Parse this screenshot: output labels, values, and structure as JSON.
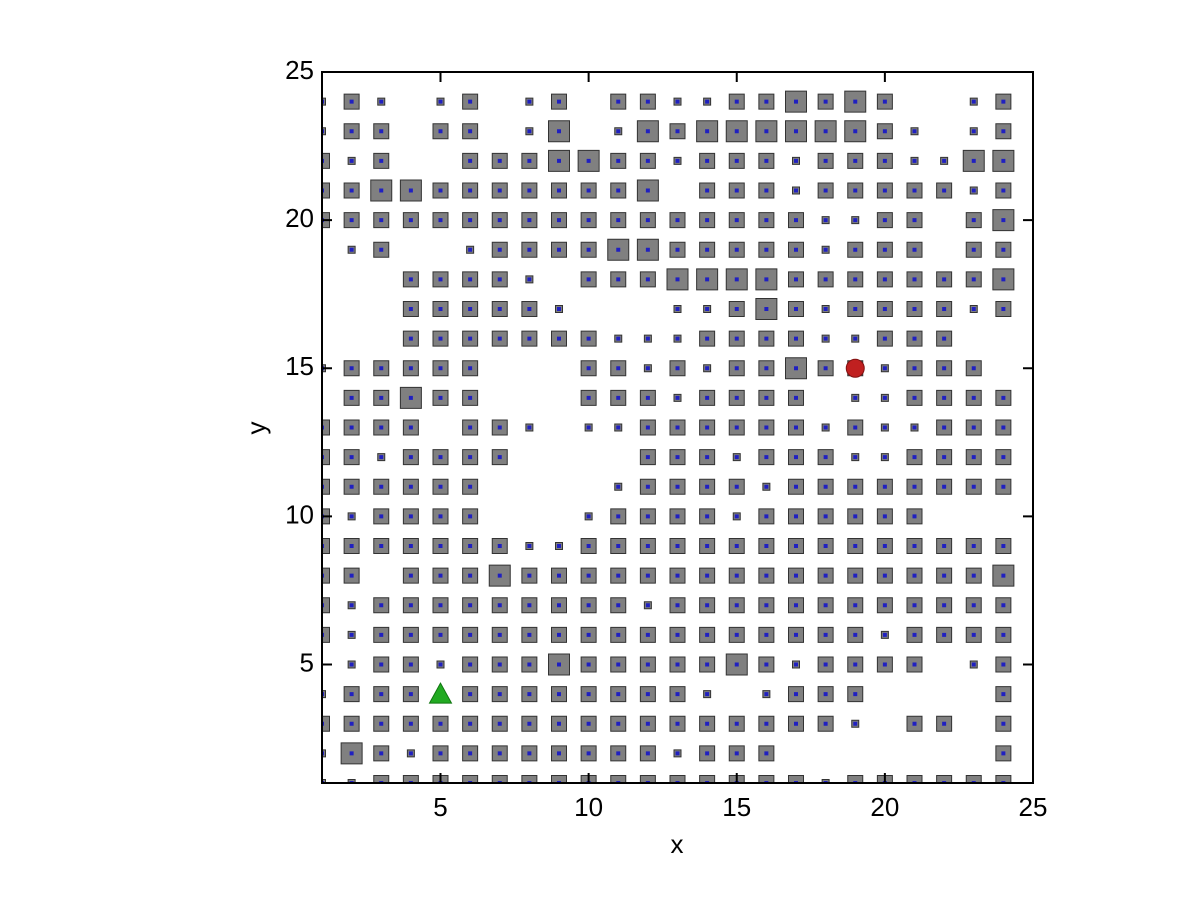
{
  "chart_data": {
    "type": "grid-scatter",
    "xlabel": "x",
    "ylabel": "y",
    "xlim": [
      1,
      25
    ],
    "ylim": [
      1,
      25
    ],
    "xticks": [
      5,
      10,
      15,
      20,
      25
    ],
    "yticks": [
      5,
      10,
      15,
      20,
      25
    ],
    "x": [
      1,
      2,
      3,
      4,
      5,
      6,
      7,
      8,
      9,
      10,
      11,
      12,
      13,
      14,
      15,
      16,
      17,
      18,
      19,
      20,
      21,
      22,
      23,
      24
    ],
    "y": [
      1,
      2,
      3,
      4,
      5,
      6,
      7,
      8,
      9,
      10,
      11,
      12,
      13,
      14,
      15,
      16,
      17,
      18,
      19,
      20,
      21,
      22,
      23,
      24
    ],
    "color": "#808080",
    "edge_color": "#2020c0",
    "sizes": [
      [
        1,
        1,
        2,
        2,
        2,
        2,
        2,
        2,
        2,
        2,
        2,
        2,
        2,
        2,
        2,
        2,
        2,
        1,
        2,
        2,
        2,
        2,
        2,
        2
      ],
      [
        1,
        3,
        2,
        1,
        2,
        2,
        2,
        2,
        2,
        2,
        2,
        2,
        1,
        2,
        2,
        2,
        null,
        null,
        null,
        null,
        null,
        null,
        null,
        2
      ],
      [
        2,
        2,
        2,
        2,
        2,
        2,
        2,
        2,
        2,
        2,
        2,
        2,
        2,
        2,
        2,
        2,
        2,
        2,
        1,
        null,
        2,
        2,
        null,
        2
      ],
      [
        1,
        2,
        2,
        2,
        1,
        2,
        2,
        2,
        2,
        2,
        2,
        2,
        2,
        1,
        null,
        1,
        2,
        2,
        2,
        null,
        null,
        null,
        null,
        2
      ],
      [
        null,
        1,
        2,
        2,
        1,
        2,
        2,
        2,
        3,
        2,
        2,
        2,
        2,
        2,
        3,
        2,
        1,
        2,
        2,
        2,
        2,
        null,
        1,
        2
      ],
      [
        2,
        1,
        2,
        2,
        2,
        2,
        2,
        2,
        2,
        2,
        2,
        2,
        2,
        2,
        2,
        2,
        2,
        2,
        2,
        1,
        2,
        2,
        2,
        2
      ],
      [
        2,
        1,
        2,
        2,
        2,
        2,
        2,
        2,
        2,
        2,
        2,
        1,
        2,
        2,
        2,
        2,
        2,
        2,
        2,
        2,
        2,
        2,
        2,
        2
      ],
      [
        2,
        2,
        null,
        2,
        2,
        2,
        3,
        2,
        2,
        2,
        2,
        2,
        2,
        2,
        2,
        2,
        2,
        2,
        2,
        2,
        2,
        2,
        2,
        3
      ],
      [
        2,
        2,
        2,
        2,
        2,
        2,
        2,
        1,
        1,
        2,
        2,
        2,
        2,
        2,
        2,
        2,
        2,
        2,
        2,
        2,
        2,
        2,
        2,
        2
      ],
      [
        2,
        1,
        2,
        2,
        2,
        2,
        null,
        null,
        null,
        1,
        2,
        2,
        2,
        2,
        1,
        2,
        2,
        2,
        2,
        2,
        2,
        null,
        null,
        null
      ],
      [
        2,
        2,
        2,
        2,
        2,
        2,
        null,
        null,
        null,
        null,
        1,
        2,
        2,
        2,
        2,
        1,
        2,
        2,
        2,
        2,
        2,
        2,
        2,
        2
      ],
      [
        2,
        2,
        1,
        2,
        2,
        2,
        2,
        null,
        null,
        null,
        null,
        2,
        2,
        2,
        1,
        2,
        2,
        2,
        1,
        1,
        2,
        2,
        2,
        2
      ],
      [
        2,
        2,
        2,
        2,
        null,
        2,
        2,
        1,
        null,
        1,
        1,
        2,
        2,
        2,
        2,
        2,
        2,
        1,
        2,
        1,
        1,
        2,
        2,
        2
      ],
      [
        null,
        2,
        2,
        3,
        2,
        2,
        null,
        null,
        null,
        2,
        2,
        2,
        1,
        2,
        2,
        2,
        2,
        null,
        1,
        1,
        2,
        2,
        2,
        2
      ],
      [
        1,
        2,
        2,
        2,
        2,
        2,
        null,
        null,
        null,
        2,
        2,
        1,
        2,
        1,
        2,
        2,
        3,
        2,
        2,
        1,
        2,
        2,
        2,
        null
      ],
      [
        null,
        null,
        null,
        2,
        2,
        2,
        2,
        2,
        2,
        2,
        1,
        1,
        1,
        2,
        2,
        2,
        2,
        1,
        1,
        2,
        2,
        2,
        null,
        null
      ],
      [
        null,
        null,
        null,
        2,
        2,
        2,
        2,
        2,
        1,
        null,
        null,
        null,
        1,
        1,
        2,
        3,
        2,
        1,
        2,
        2,
        2,
        2,
        1,
        2
      ],
      [
        null,
        null,
        null,
        2,
        2,
        2,
        2,
        1,
        null,
        2,
        2,
        2,
        3,
        3,
        3,
        3,
        2,
        2,
        2,
        2,
        2,
        2,
        2,
        3
      ],
      [
        null,
        1,
        2,
        null,
        null,
        1,
        2,
        2,
        2,
        2,
        3,
        3,
        2,
        2,
        2,
        2,
        2,
        1,
        2,
        2,
        2,
        null,
        2,
        2
      ],
      [
        2,
        2,
        2,
        2,
        2,
        2,
        2,
        2,
        2,
        2,
        2,
        2,
        2,
        2,
        2,
        2,
        2,
        1,
        1,
        2,
        2,
        null,
        2,
        3
      ],
      [
        2,
        2,
        3,
        3,
        2,
        2,
        2,
        2,
        2,
        2,
        2,
        3,
        null,
        2,
        2,
        2,
        1,
        2,
        2,
        2,
        2,
        2,
        1,
        2
      ],
      [
        2,
        1,
        2,
        null,
        null,
        2,
        2,
        2,
        3,
        3,
        2,
        2,
        1,
        2,
        2,
        2,
        1,
        2,
        2,
        2,
        1,
        1,
        3,
        3
      ],
      [
        1,
        2,
        2,
        null,
        2,
        2,
        null,
        1,
        3,
        null,
        1,
        3,
        2,
        3,
        3,
        3,
        3,
        3,
        3,
        2,
        1,
        null,
        1,
        2
      ],
      [
        1,
        2,
        1,
        null,
        1,
        2,
        null,
        1,
        2,
        null,
        2,
        2,
        1,
        1,
        2,
        2,
        3,
        2,
        3,
        2,
        null,
        null,
        1,
        2
      ]
    ],
    "start": {
      "x": 5,
      "y": 4,
      "color": "#22aa22"
    },
    "goal": {
      "x": 19,
      "y": 15,
      "color": "#c02020"
    }
  }
}
